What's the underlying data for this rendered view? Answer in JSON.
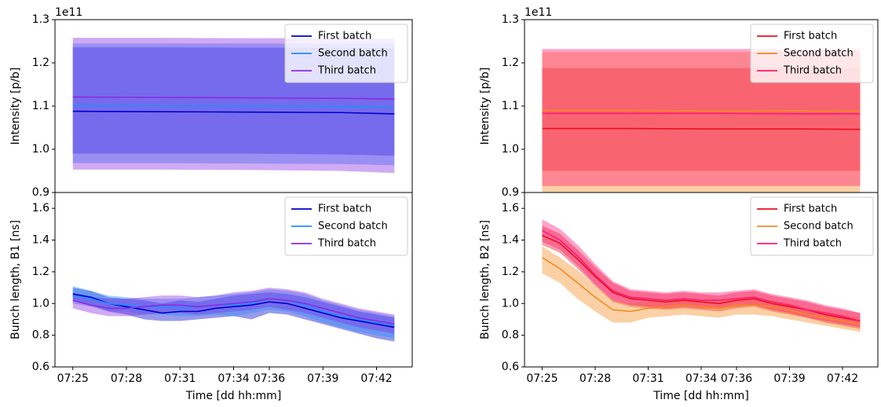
{
  "chart_data": [
    {
      "type": "line",
      "ylabel": "Intensity [p/b]",
      "offset_text": "1e11",
      "x": [
        "07:25",
        "07:30",
        "07:35",
        "07:40",
        "07:43"
      ],
      "xlim": [
        "07:24",
        "07:44"
      ],
      "ylim": [
        0.9,
        1.3
      ],
      "yticks": [
        0.9,
        {
          "value": 1.0,
          "label": "1.0"
        },
        1.1,
        1.2,
        1.3
      ],
      "legend": "upper right",
      "series": [
        {
          "name": "First batch",
          "color": "#0000cd",
          "values": [
            1.088,
            1.087,
            1.086,
            1.085,
            1.082
          ],
          "lower": [
            0.99,
            0.99,
            0.99,
            0.988,
            0.985
          ],
          "upper": [
            1.236,
            1.236,
            1.235,
            1.235,
            1.234
          ]
        },
        {
          "name": "Second batch",
          "color": "#1e90ff",
          "values": [
            1.101,
            1.1,
            1.1,
            1.099,
            1.097
          ],
          "lower": [
            0.968,
            0.968,
            0.967,
            0.966,
            0.963
          ],
          "upper": [
            1.245,
            1.245,
            1.245,
            1.244,
            1.244
          ]
        },
        {
          "name": "Third batch",
          "color": "#8a2be2",
          "values": [
            1.121,
            1.12,
            1.119,
            1.118,
            1.116
          ],
          "lower": [
            0.953,
            0.953,
            0.952,
            0.95,
            0.945
          ],
          "upper": [
            1.258,
            1.258,
            1.257,
            1.257,
            1.256
          ]
        }
      ]
    },
    {
      "type": "line",
      "ylabel": "Bunch length, B1 [ns]",
      "xlabel": "Time [dd hh:mm]",
      "x": [
        "07:25",
        "07:26",
        "07:27",
        "07:28",
        "07:29",
        "07:30",
        "07:31",
        "07:32",
        "07:33",
        "07:34",
        "07:35",
        "07:36",
        "07:37",
        "07:38",
        "07:39",
        "07:40",
        "07:41",
        "07:42",
        "07:43"
      ],
      "xlim": [
        "07:24",
        "07:44"
      ],
      "xticks": [
        "07:25",
        "07:28",
        "07:31",
        "07:34",
        "07:36",
        "07:39",
        "07:42"
      ],
      "ylim": [
        0.6,
        1.7
      ],
      "yticks": [
        0.6,
        0.8,
        {
          "value": 1.0,
          "label": "1.0"
        },
        1.2,
        1.4,
        1.6
      ],
      "legend": "upper right",
      "series": [
        {
          "name": "First batch",
          "color": "#0000cd",
          "values": [
            1.06,
            1.04,
            1.0,
            0.98,
            0.96,
            0.94,
            0.95,
            0.95,
            0.97,
            0.98,
            0.99,
            1.01,
            1.0,
            0.97,
            0.94,
            0.91,
            0.89,
            0.87,
            0.85
          ],
          "lower": [
            1.02,
            0.99,
            0.95,
            0.93,
            0.9,
            0.89,
            0.89,
            0.9,
            0.91,
            0.92,
            0.9,
            0.94,
            0.93,
            0.9,
            0.87,
            0.84,
            0.81,
            0.78,
            0.76
          ],
          "upper": [
            1.1,
            1.08,
            1.04,
            1.03,
            1.02,
            1.0,
            1.02,
            1.01,
            1.03,
            1.05,
            1.06,
            1.07,
            1.06,
            1.04,
            1.01,
            0.98,
            0.95,
            0.93,
            0.91
          ]
        },
        {
          "name": "Second batch",
          "color": "#1e90ff",
          "values": [
            1.05,
            1.03,
            1.0,
            0.99,
            0.98,
            0.98,
            0.97,
            0.98,
            0.99,
            0.99,
            1.0,
            1.03,
            1.02,
            0.99,
            0.95,
            0.92,
            0.9,
            0.88,
            0.86
          ],
          "lower": [
            1.0,
            0.98,
            0.95,
            0.95,
            0.93,
            0.93,
            0.92,
            0.92,
            0.93,
            0.92,
            0.94,
            0.96,
            0.95,
            0.92,
            0.88,
            0.85,
            0.82,
            0.8,
            0.78
          ],
          "upper": [
            1.11,
            1.08,
            1.05,
            1.04,
            1.03,
            1.03,
            1.03,
            1.04,
            1.05,
            1.06,
            1.07,
            1.09,
            1.08,
            1.06,
            1.02,
            0.99,
            0.96,
            0.94,
            0.92
          ]
        },
        {
          "name": "Third batch",
          "color": "#8a2be2",
          "values": [
            1.02,
            0.99,
            0.97,
            0.97,
            0.98,
            0.99,
            0.99,
            0.98,
            0.99,
            1.0,
            1.01,
            1.03,
            1.02,
            1.0,
            0.97,
            0.94,
            0.91,
            0.89,
            0.87
          ],
          "lower": [
            0.97,
            0.94,
            0.92,
            0.92,
            0.93,
            0.94,
            0.94,
            0.93,
            0.94,
            0.95,
            0.96,
            0.98,
            0.96,
            0.94,
            0.91,
            0.88,
            0.85,
            0.83,
            0.81
          ],
          "upper": [
            1.07,
            1.04,
            1.03,
            1.03,
            1.04,
            1.05,
            1.05,
            1.04,
            1.05,
            1.07,
            1.08,
            1.1,
            1.09,
            1.07,
            1.03,
            1.0,
            0.97,
            0.95,
            0.93
          ]
        }
      ]
    },
    {
      "type": "line",
      "ylabel": "Intensity [p/b]",
      "offset_text": "1e11",
      "x": [
        "07:25",
        "07:30",
        "07:35",
        "07:40",
        "07:43"
      ],
      "xlim": [
        "07:24",
        "07:44"
      ],
      "ylim": [
        0.9,
        1.3
      ],
      "yticks": [
        0.9,
        {
          "value": 1.0,
          "label": "1.0"
        },
        1.1,
        1.2,
        1.3
      ],
      "legend": "upper right",
      "series": [
        {
          "name": "First batch",
          "color": "#e8101e",
          "values": [
            1.048,
            1.048,
            1.047,
            1.047,
            1.046
          ],
          "lower": [
            0.95,
            0.95,
            0.95,
            0.95,
            0.95
          ],
          "upper": [
            1.188,
            1.188,
            1.188,
            1.188,
            1.188
          ]
        },
        {
          "name": "Second batch",
          "color": "#f5891f",
          "values": [
            1.09,
            1.09,
            1.089,
            1.089,
            1.088
          ],
          "lower": [
            0.88,
            0.88,
            0.88,
            0.88,
            0.88
          ],
          "upper": [
            1.225,
            1.225,
            1.225,
            1.225,
            1.225
          ]
        },
        {
          "name": "Third batch",
          "color": "#ff1a75",
          "values": [
            1.083,
            1.083,
            1.083,
            1.082,
            1.082
          ],
          "lower": [
            0.915,
            0.915,
            0.915,
            0.915,
            0.915
          ],
          "upper": [
            1.232,
            1.232,
            1.232,
            1.232,
            1.232
          ]
        }
      ]
    },
    {
      "type": "line",
      "ylabel": "Bunch length, B2 [ns]",
      "xlabel": "Time [dd hh:mm]",
      "x": [
        "07:25",
        "07:26",
        "07:27",
        "07:28",
        "07:29",
        "07:30",
        "07:31",
        "07:32",
        "07:33",
        "07:34",
        "07:35",
        "07:36",
        "07:37",
        "07:38",
        "07:39",
        "07:40",
        "07:41",
        "07:42",
        "07:43"
      ],
      "xlim": [
        "07:24",
        "07:44"
      ],
      "xticks": [
        "07:25",
        "07:28",
        "07:31",
        "07:34",
        "07:36",
        "07:39",
        "07:42"
      ],
      "ylim": [
        0.6,
        1.7
      ],
      "yticks": [
        0.6,
        0.8,
        {
          "value": 1.0,
          "label": "1.0"
        },
        1.2,
        1.4,
        1.6
      ],
      "legend": "upper right",
      "series": [
        {
          "name": "First batch",
          "color": "#e8101e",
          "values": [
            1.43,
            1.38,
            1.28,
            1.17,
            1.07,
            1.03,
            1.02,
            1.01,
            1.02,
            1.01,
            1.0,
            1.02,
            1.03,
            1.0,
            0.98,
            0.96,
            0.93,
            0.91,
            0.89
          ],
          "lower": [
            1.37,
            1.32,
            1.22,
            1.11,
            1.01,
            0.98,
            0.97,
            0.96,
            0.97,
            0.96,
            0.95,
            0.97,
            0.98,
            0.95,
            0.93,
            0.91,
            0.88,
            0.86,
            0.84
          ],
          "upper": [
            1.49,
            1.44,
            1.34,
            1.23,
            1.13,
            1.08,
            1.07,
            1.06,
            1.07,
            1.06,
            1.05,
            1.07,
            1.08,
            1.05,
            1.03,
            1.01,
            0.98,
            0.96,
            0.94
          ]
        },
        {
          "name": "Second batch",
          "color": "#f5891f",
          "values": [
            1.29,
            1.22,
            1.13,
            1.04,
            0.96,
            0.95,
            0.97,
            0.98,
            0.99,
            0.98,
            0.97,
            0.99,
            0.99,
            0.98,
            0.96,
            0.93,
            0.91,
            0.89,
            0.87
          ],
          "lower": [
            1.19,
            1.13,
            1.03,
            0.95,
            0.88,
            0.88,
            0.91,
            0.92,
            0.93,
            0.92,
            0.91,
            0.93,
            0.93,
            0.92,
            0.9,
            0.88,
            0.86,
            0.84,
            0.82
          ],
          "upper": [
            1.36,
            1.29,
            1.21,
            1.11,
            1.02,
            1.0,
            1.01,
            1.02,
            1.03,
            1.02,
            1.01,
            1.03,
            1.03,
            1.02,
            1.0,
            0.97,
            0.95,
            0.93,
            0.91
          ]
        },
        {
          "name": "Third batch",
          "color": "#ff1a75",
          "values": [
            1.46,
            1.4,
            1.3,
            1.18,
            1.08,
            1.04,
            1.03,
            1.02,
            1.03,
            1.02,
            1.02,
            1.03,
            1.04,
            1.01,
            0.99,
            0.96,
            0.94,
            0.92,
            0.89
          ],
          "lower": [
            1.39,
            1.34,
            1.24,
            1.12,
            1.02,
            0.99,
            0.98,
            0.97,
            0.98,
            0.97,
            0.97,
            0.98,
            0.99,
            0.96,
            0.94,
            0.91,
            0.89,
            0.87,
            0.85
          ],
          "upper": [
            1.53,
            1.47,
            1.37,
            1.25,
            1.14,
            1.09,
            1.08,
            1.07,
            1.08,
            1.07,
            1.07,
            1.08,
            1.09,
            1.06,
            1.04,
            1.02,
            0.99,
            0.97,
            0.94
          ]
        }
      ]
    }
  ]
}
